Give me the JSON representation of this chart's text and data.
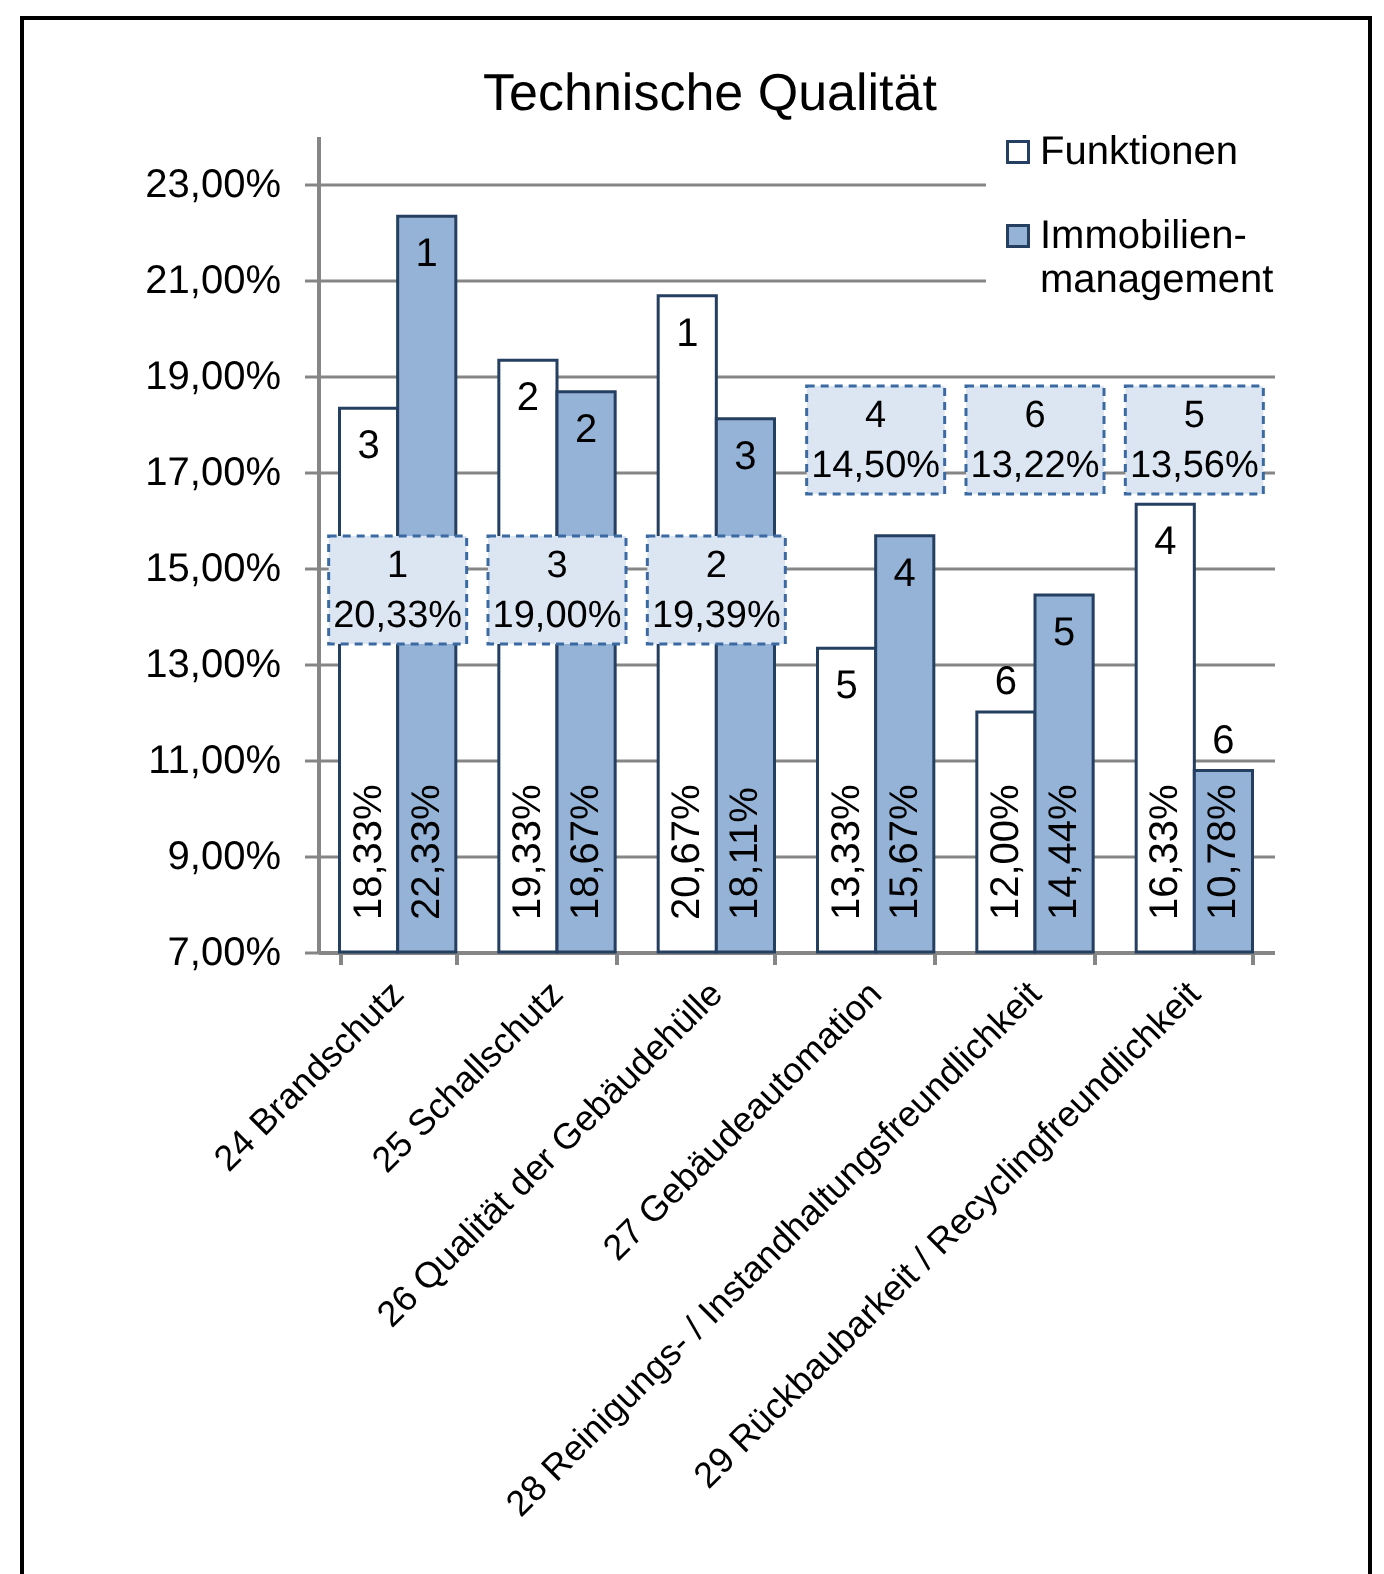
{
  "chart_data": {
    "type": "bar",
    "title": "Technische Qualität",
    "categories": [
      "24 Brandschutz",
      "25 Schallschutz",
      "26 Qualität der Gebäudehülle",
      "27 Gebäudeautomation",
      "28 Reinigungs- / Instandhaltungsfreundlichkeit",
      "29 Rückbaubarkeit / Recyclingfreundlichkeit"
    ],
    "series": [
      {
        "name": "Funktionen",
        "color": "#ffffff",
        "values": [
          18.33,
          19.33,
          20.67,
          13.33,
          12.0,
          16.33
        ],
        "value_labels": [
          "18,33%",
          "19,33%",
          "20,67%",
          "13,33%",
          "12,00%",
          "16,33%"
        ]
      },
      {
        "name": "Immobilien-\nmanagement",
        "color": "#95b3d7",
        "values": [
          22.33,
          18.67,
          18.11,
          15.67,
          14.44,
          10.78
        ],
        "value_labels": [
          "22,33%",
          "18,67%",
          "18,11%",
          "15,67%",
          "14,44%",
          "10,78%"
        ]
      }
    ],
    "ylim": [
      7,
      24
    ],
    "yticks": [
      {
        "value": 7,
        "label": "7,00%"
      },
      {
        "value": 9,
        "label": "9,00%"
      },
      {
        "value": 11,
        "label": "11,00%"
      },
      {
        "value": 13,
        "label": "13,00%"
      },
      {
        "value": 15,
        "label": "15,00%"
      },
      {
        "value": 17,
        "label": "17,00%"
      },
      {
        "value": 19,
        "label": "19,00%"
      },
      {
        "value": 21,
        "label": "21,00%"
      },
      {
        "value": 23,
        "label": "23,00%"
      }
    ],
    "grid": "y",
    "legend": "top right",
    "annotations": [
      {
        "text": "3",
        "x": "24 Brandschutz",
        "y": 18.33
      },
      {
        "text": "1",
        "x": "24 Brandschutz",
        "y": 22.33
      },
      {
        "text": "2",
        "x": "25 Schallschutz",
        "y": 19.33
      },
      {
        "text": "2",
        "x": "25 Schallschutz",
        "y": 18.67
      },
      {
        "text": "1",
        "x": "26 Qualität der Gebäudehülle",
        "y": 20.67
      },
      {
        "text": "3",
        "x": "26 Qualität der Gebäudehülle",
        "y": 18.11
      },
      {
        "text": "5",
        "x": "27 Gebäudeautomation",
        "y": 13.33
      },
      {
        "text": "4",
        "x": "27 Gebäudeautomation",
        "y": 15.67
      },
      {
        "text": "6",
        "x": "28 Reinigungs- / Instandhaltungsfreundlichkeit",
        "y": 12.0
      },
      {
        "text": "5",
        "x": "28 Reinigungs- / Instandhaltungsfreundlichkeit",
        "y": 14.44
      },
      {
        "text": "4",
        "x": "29 Rückbaubarkeit / Recyclingfreundlichkeit",
        "y": 16.33
      },
      {
        "text": "6",
        "x": "29 Rückbaubarkeit / Recyclingfreundlichkeit",
        "y": 10.78
      },
      "1\n20,33%",
      "3\n19,00%",
      "2\n19,39%",
      "4\n14,50%",
      "6\n13,22%",
      "5\n13,56%"
    ]
  }
}
